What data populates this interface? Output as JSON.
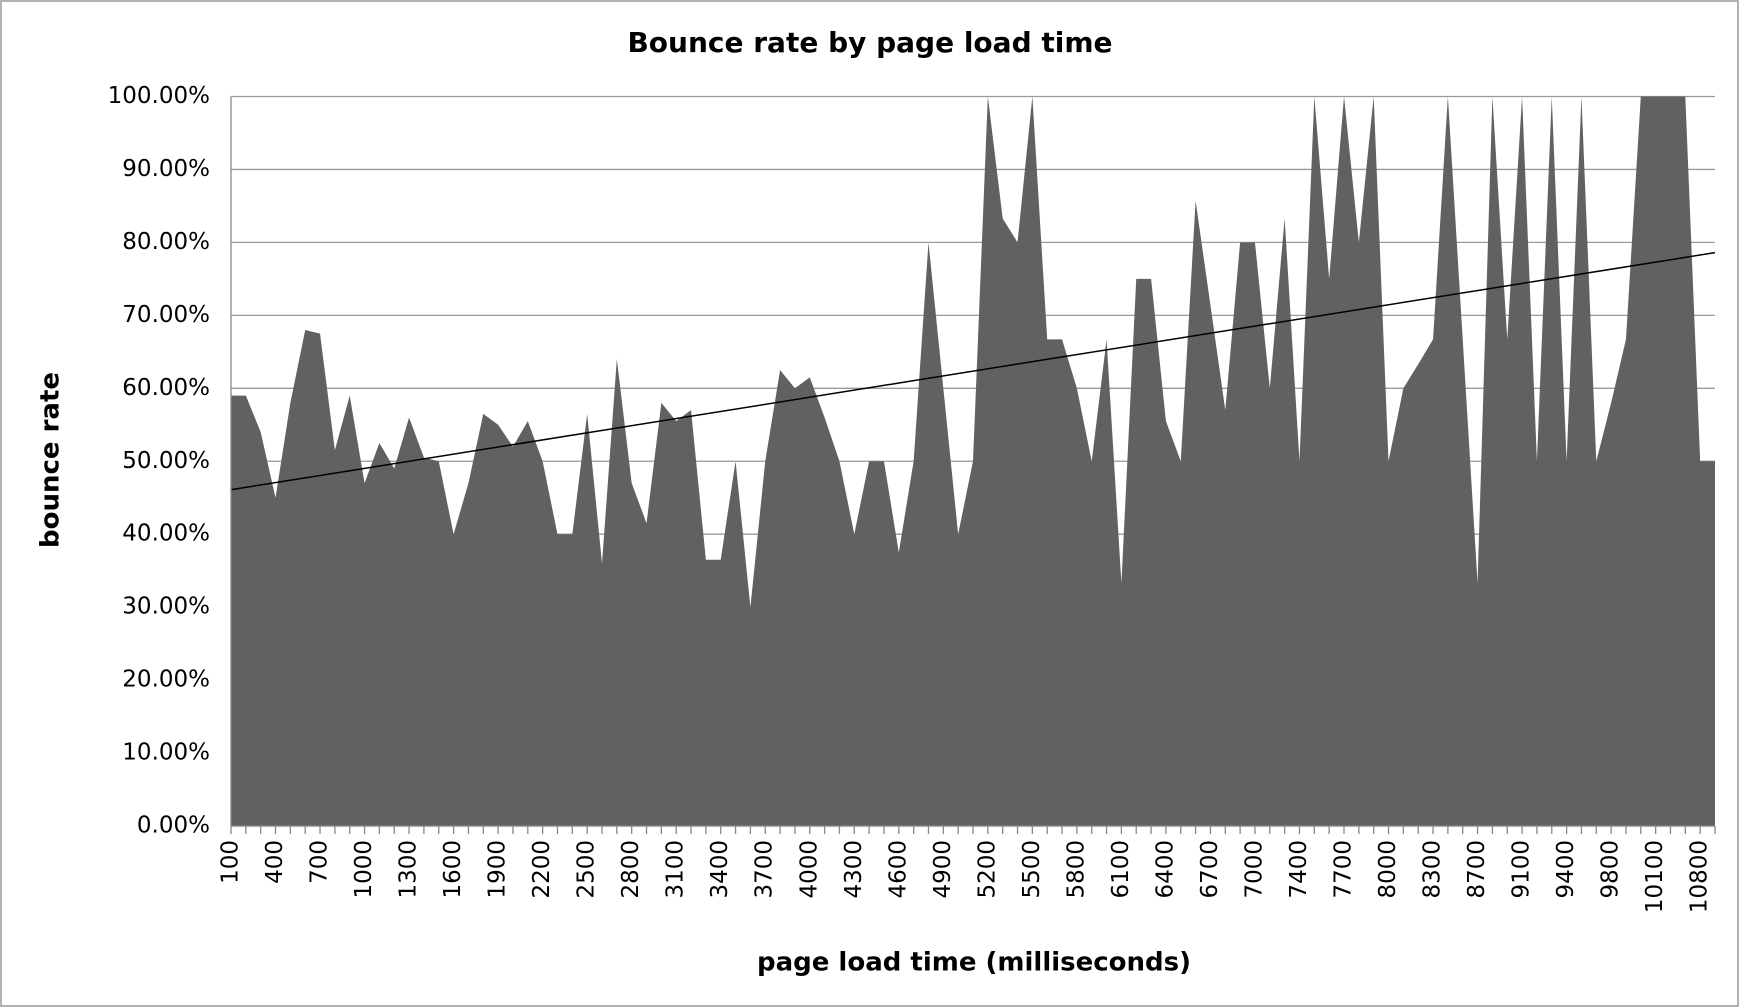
{
  "chart_data": {
    "type": "area",
    "title": "Bounce rate by page load time",
    "x_label": "page load time (milliseconds)",
    "y_label": "bounce rate",
    "categories": [
      "100",
      null,
      null,
      "400",
      null,
      null,
      "700",
      null,
      null,
      "1000",
      null,
      null,
      "1300",
      null,
      null,
      "1600",
      null,
      null,
      "1900",
      null,
      null,
      "2200",
      null,
      null,
      "2500",
      null,
      null,
      "2800",
      null,
      null,
      "3100",
      null,
      null,
      "3400",
      null,
      null,
      "3700",
      null,
      null,
      "4000",
      null,
      null,
      "4300",
      null,
      null,
      "4600",
      null,
      null,
      "4900",
      null,
      null,
      "5200",
      null,
      null,
      "5500",
      null,
      null,
      "5800",
      null,
      null,
      "6100",
      null,
      null,
      "6400",
      null,
      null,
      "6700",
      null,
      null,
      "7000",
      null,
      null,
      "7400",
      null,
      null,
      "7700",
      null,
      null,
      "8000",
      null,
      null,
      "8300",
      null,
      null,
      "8700",
      null,
      null,
      "9100",
      null,
      null,
      "9400",
      null,
      null,
      "9800",
      null,
      null,
      "10100",
      null,
      null,
      "10800",
      null
    ],
    "values": [
      59,
      59,
      54,
      45,
      58,
      68,
      67.5,
      51.5,
      59,
      47,
      52.5,
      49,
      56,
      50.5,
      50,
      40,
      47,
      56.5,
      55,
      52,
      55.5,
      50,
      40,
      40,
      56.5,
      36,
      64,
      47,
      41.5,
      58,
      55.5,
      57,
      36.5,
      36.5,
      50,
      30,
      50,
      62.5,
      60,
      61.5,
      56,
      50,
      40,
      50,
      50,
      37.5,
      50,
      80,
      60,
      40,
      50,
      100,
      83.3,
      80,
      100,
      66.7,
      66.7,
      60,
      50,
      66.7,
      33.3,
      75,
      75,
      55.5,
      50,
      85.7,
      71.4,
      57,
      80,
      80,
      60,
      83.3,
      50,
      100,
      75,
      100,
      80,
      100,
      50,
      60,
      63.3,
      66.7,
      100,
      66.7,
      33.3,
      100,
      66.7,
      100,
      50,
      100,
      50,
      100,
      50,
      58,
      66.7,
      100,
      100,
      100,
      100,
      50,
      50
    ],
    "color": "#616161",
    "trendline": {
      "values": [
        46.1,
        78.6
      ],
      "color": "#000000"
    },
    "ylim": [
      0,
      100
    ],
    "yticks": [
      {
        "value": 0,
        "label": "0.00%"
      },
      {
        "value": 10,
        "label": "10.00%"
      },
      {
        "value": 20,
        "label": "20.00%"
      },
      {
        "value": 30,
        "label": "30.00%"
      },
      {
        "value": 40,
        "label": "40.00%"
      },
      {
        "value": 50,
        "label": "50.00%"
      },
      {
        "value": 60,
        "label": "60.00%"
      },
      {
        "value": 70,
        "label": "70.00%"
      },
      {
        "value": 80,
        "label": "80.00%"
      },
      {
        "value": 90,
        "label": "90.00%"
      },
      {
        "value": 100,
        "label": "100.00%"
      }
    ],
    "grid": true
  }
}
